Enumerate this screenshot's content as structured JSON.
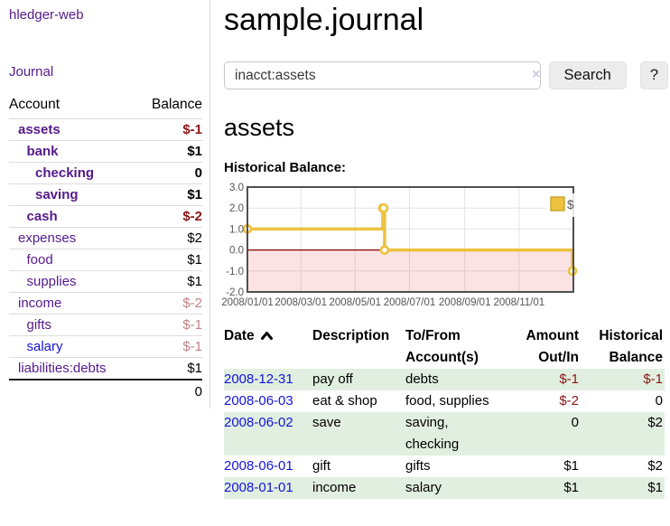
{
  "theme": {
    "purple_link": "#551a8b",
    "blue_link": "#1414dd",
    "negative": "#8b1616",
    "negative_faded": "#c08484",
    "row_green": "#e1efe0",
    "chart_gold": "#edc240"
  },
  "app": {
    "brand": "hledger-web",
    "nav": {
      "journal": "Journal"
    }
  },
  "sidebar": {
    "columns": {
      "account": "Account",
      "balance": "Balance"
    },
    "accounts": [
      {
        "name": "assets",
        "balance": "$-1",
        "depth": 0,
        "bold": true,
        "balance_tone": "negative"
      },
      {
        "name": "bank",
        "balance": "$1",
        "depth": 1,
        "bold": true,
        "balance_tone": "normal"
      },
      {
        "name": "checking",
        "balance": "0",
        "depth": 2,
        "bold": true,
        "balance_tone": "normal"
      },
      {
        "name": "saving",
        "balance": "$1",
        "depth": 2,
        "bold": true,
        "balance_tone": "normal"
      },
      {
        "name": "cash",
        "balance": "$-2",
        "depth": 1,
        "bold": true,
        "balance_tone": "negative"
      },
      {
        "name": "expenses",
        "balance": "$2",
        "depth": 0,
        "bold": false,
        "balance_tone": "normal"
      },
      {
        "name": "food",
        "balance": "$1",
        "depth": 1,
        "bold": false,
        "balance_tone": "normal"
      },
      {
        "name": "supplies",
        "balance": "$1",
        "depth": 1,
        "bold": false,
        "balance_tone": "normal"
      },
      {
        "name": "income",
        "balance": "$-2",
        "depth": 0,
        "bold": false,
        "balance_tone": "negative-faded"
      },
      {
        "name": "gifts",
        "balance": "$-1",
        "depth": 1,
        "bold": false,
        "balance_tone": "negative-faded"
      },
      {
        "name": "salary",
        "balance": "$-1",
        "depth": 1,
        "bold": false,
        "balance_tone": "negative-faded",
        "link_tone": "unvisited"
      },
      {
        "name": "liabilities:debts",
        "balance": "$1",
        "depth": 0,
        "bold": false,
        "balance_tone": "normal"
      }
    ],
    "total": "0"
  },
  "main": {
    "title": "sample.journal",
    "search": {
      "value": "inacct:assets",
      "clear": "×",
      "submit": "Search",
      "help": "?"
    },
    "account_heading": "assets",
    "chart_heading": "Historical Balance:"
  },
  "chart_data": {
    "type": "line",
    "title": "Historical Balance:",
    "steps": true,
    "x_range": [
      "2008-01-01",
      "2009-01-01"
    ],
    "ylim": [
      -2,
      3
    ],
    "y_ticks": [
      3.0,
      2.0,
      1.0,
      0.0,
      -1.0,
      -2.0
    ],
    "x_ticks": [
      {
        "date": "2008-01-01",
        "label": "2008/01/01"
      },
      {
        "date": "2008-03-01",
        "label": "2008/03/01"
      },
      {
        "date": "2008-05-01",
        "label": "2008/05/01"
      },
      {
        "date": "2008-07-01",
        "label": "2008/07/01"
      },
      {
        "date": "2008-09-01",
        "label": "2008/09/01"
      },
      {
        "date": "2008-11-01",
        "label": "2008/11/01"
      }
    ],
    "series": [
      {
        "name": "$",
        "color": "#edc240",
        "points": [
          {
            "date": "2008-01-01",
            "value": 1
          },
          {
            "date": "2008-06-01",
            "value": 2
          },
          {
            "date": "2008-06-02",
            "value": 2
          },
          {
            "date": "2008-06-03",
            "value": 0
          },
          {
            "date": "2008-12-31",
            "value": -1
          }
        ]
      }
    ],
    "legend": {
      "label": "$",
      "position": "top-right"
    },
    "colors": {
      "grid": "#e3e3e3",
      "border": "#4f4f4f",
      "negative_fill": "rgba(235,80,80,0.16)",
      "zero_line": "#8b0000",
      "tick_text": "#545454"
    }
  },
  "register": {
    "headers": {
      "date": "Date",
      "sort": "ascending",
      "description": "Description",
      "accounts": "To/From Account(s)",
      "amount": "Amount Out/In",
      "balance": "Historical Balance"
    },
    "rows": [
      {
        "date": "2008-12-31",
        "description": "pay off",
        "accounts": "debts",
        "amount": "$-1",
        "amount_tone": "negative",
        "balance": "$-1",
        "balance_tone": "negative"
      },
      {
        "date": "2008-06-03",
        "description": "eat & shop",
        "accounts": "food, supplies",
        "amount": "$-2",
        "amount_tone": "negative",
        "balance": "0",
        "balance_tone": "normal"
      },
      {
        "date": "2008-06-02",
        "description": "save",
        "accounts": "saving, checking",
        "amount": "0",
        "amount_tone": "normal",
        "balance": "$2",
        "balance_tone": "normal"
      },
      {
        "date": "2008-06-01",
        "description": "gift",
        "accounts": "gifts",
        "amount": "$1",
        "amount_tone": "normal",
        "balance": "$2",
        "balance_tone": "normal"
      },
      {
        "date": "2008-01-01",
        "description": "income",
        "accounts": "salary",
        "amount": "$1",
        "amount_tone": "normal",
        "balance": "$1",
        "balance_tone": "normal"
      }
    ]
  }
}
